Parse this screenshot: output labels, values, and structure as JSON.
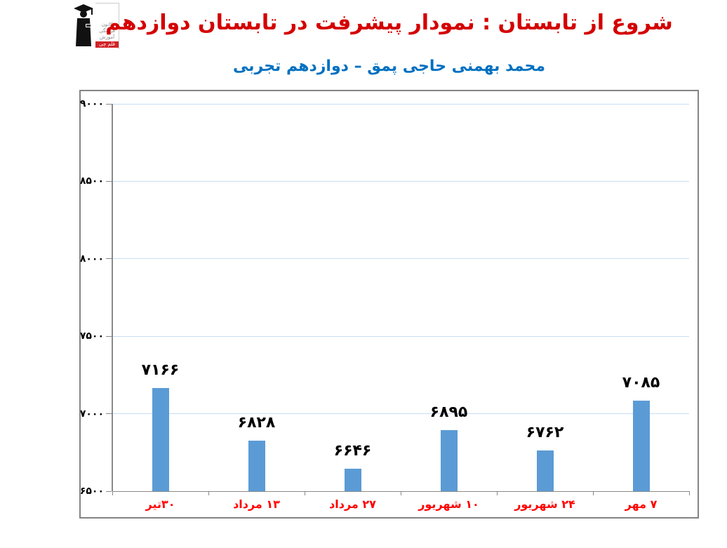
{
  "header": {
    "title": "شروع از تابستان : نمودار پیشرفت در تابستان دوازدهم",
    "title_color": "#d40000",
    "subtitle": "محمد بهمنی حاجی پمق – دوازدهم تجربی",
    "subtitle_color": "#0070c0",
    "logo": {
      "lines": [
        "کانون",
        "فرهنگی",
        "آموزش"
      ],
      "badge": "قلم چی",
      "badge_bg": "#d02427"
    }
  },
  "chart_data": {
    "type": "bar",
    "title": "شروع از تابستان : نمودار پیشرفت در تابستان دوازدهم",
    "subtitle": "محمد بهمنی حاجی پمق – دوازدهم تجربی",
    "categories": [
      "۳۰تیر",
      "۱۳ مرداد",
      "۲۷ مرداد",
      "۱۰ شهریور",
      "۲۴ شهریور",
      "۷ مهر"
    ],
    "values": [
      7166,
      6828,
      6646,
      6895,
      6762,
      7085
    ],
    "value_labels": [
      "۷۱۶۶",
      "۶۸۲۸",
      "۶۶۴۶",
      "۶۸۹۵",
      "۶۷۶۲",
      "۷۰۸۵"
    ],
    "ylim": [
      6500,
      9000
    ],
    "ytick_step": 500,
    "ytick_labels": [
      "۶۵۰۰",
      "۷۰۰۰",
      "۷۵۰۰",
      "۸۰۰۰",
      "۸۵۰۰",
      "۹۰۰۰"
    ],
    "grid": true,
    "legend": "none",
    "bar_color": "#5b9bd5",
    "gridline_color": "#c9dcf5",
    "axis_color": "#898989",
    "value_label_color": "#000000",
    "category_label_color": "#ff0000",
    "ytick_label_color": "#000000"
  }
}
